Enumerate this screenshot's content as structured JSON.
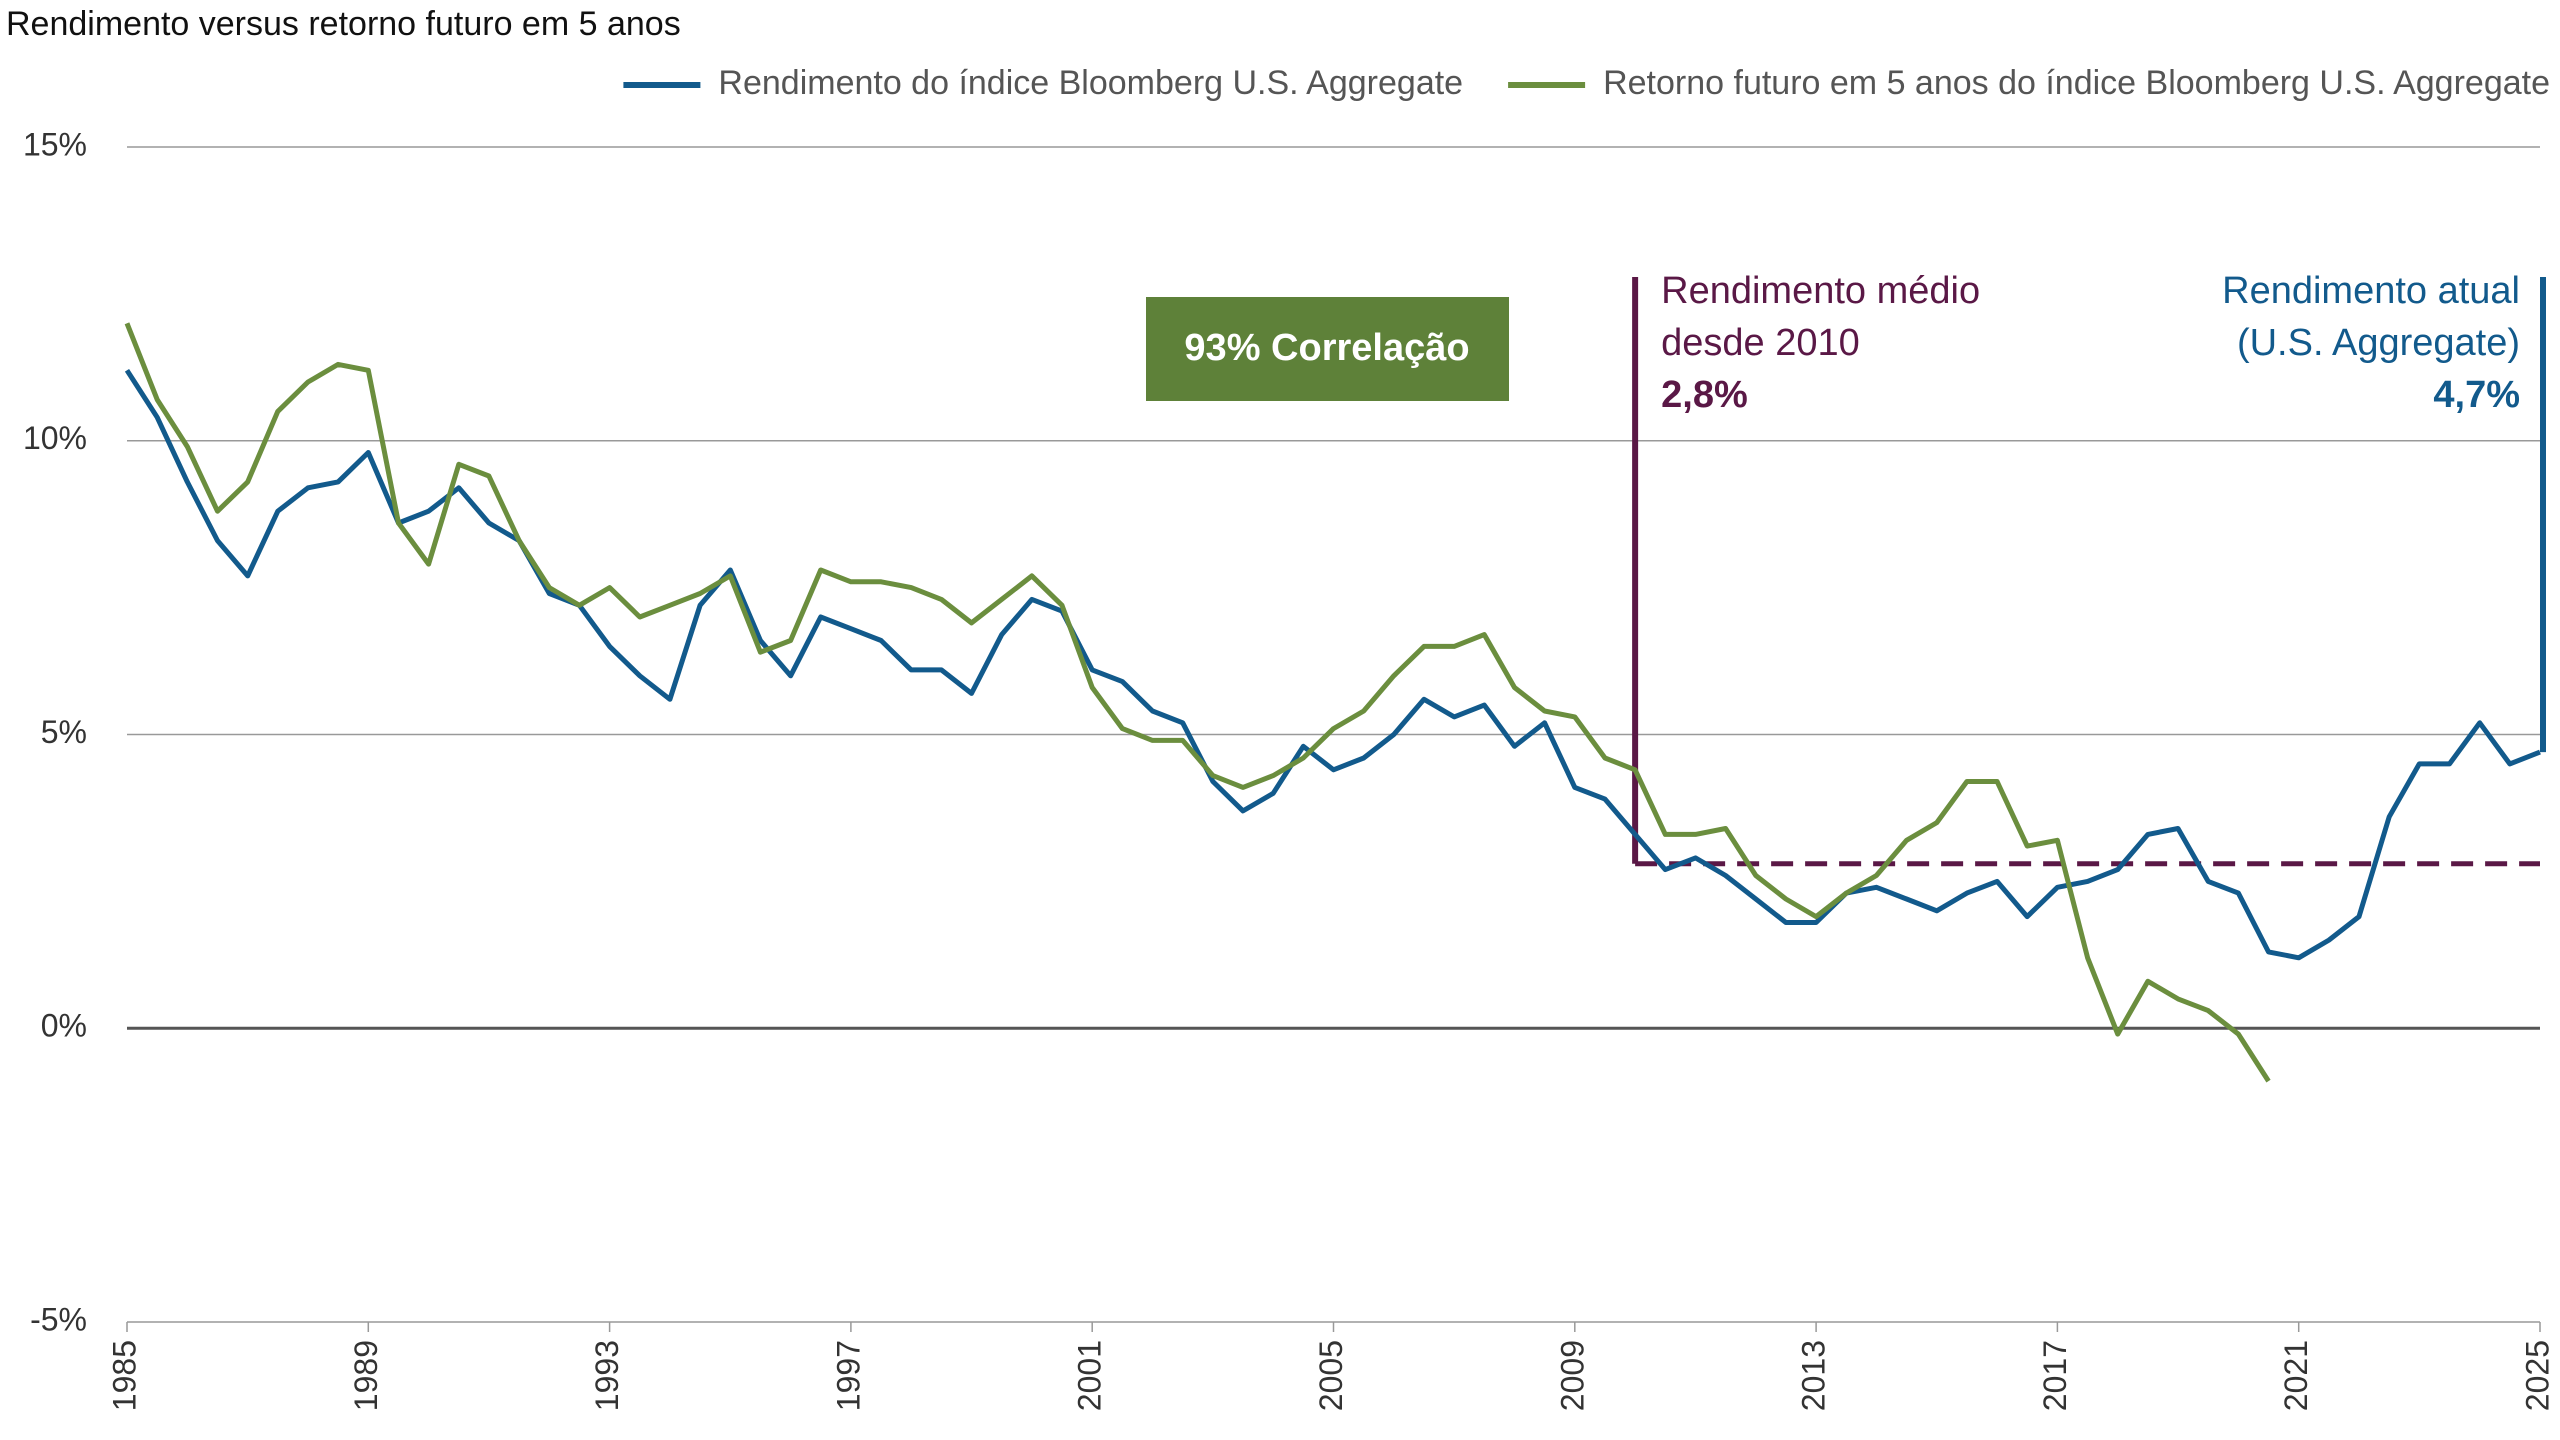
{
  "chart_data": {
    "type": "line",
    "title": "Rendimento versus retorno futuro em 5 anos",
    "x": [
      1985.0,
      1985.5,
      1986.0,
      1986.5,
      1987.0,
      1987.5,
      1988.0,
      1988.5,
      1989.0,
      1989.5,
      1990.0,
      1990.5,
      1991.0,
      1991.5,
      1992.0,
      1992.5,
      1993.0,
      1993.5,
      1994.0,
      1994.5,
      1995.0,
      1995.5,
      1996.0,
      1996.5,
      1997.0,
      1997.5,
      1998.0,
      1998.5,
      1999.0,
      1999.5,
      2000.0,
      2000.5,
      2001.0,
      2001.5,
      2002.0,
      2002.5,
      2003.0,
      2003.5,
      2004.0,
      2004.5,
      2005.0,
      2005.5,
      2006.0,
      2006.5,
      2007.0,
      2007.5,
      2008.0,
      2008.5,
      2009.0,
      2009.5,
      2010.0,
      2010.5,
      2011.0,
      2011.5,
      2012.0,
      2012.5,
      2013.0,
      2013.5,
      2014.0,
      2014.5,
      2015.0,
      2015.5,
      2016.0,
      2016.5,
      2017.0,
      2017.5,
      2018.0,
      2018.5,
      2019.0,
      2019.5,
      2020.0,
      2020.5,
      2021.0,
      2021.5,
      2022.0,
      2022.5,
      2023.0,
      2023.5,
      2024.0,
      2024.5,
      2025.0
    ],
    "series": [
      {
        "name": "Rendimento do índice Bloomberg U.S. Aggregate",
        "color": "#125a8c",
        "values": [
          11.2,
          10.4,
          9.3,
          8.3,
          7.7,
          8.8,
          9.2,
          9.3,
          9.8,
          8.6,
          8.8,
          9.2,
          8.6,
          8.3,
          7.4,
          7.2,
          6.5,
          6.0,
          5.6,
          7.2,
          7.8,
          6.6,
          6.0,
          7.0,
          6.8,
          6.6,
          6.1,
          6.1,
          5.7,
          6.7,
          7.3,
          7.1,
          6.1,
          5.9,
          5.4,
          5.2,
          4.2,
          3.7,
          4.0,
          4.8,
          4.4,
          4.6,
          5.0,
          5.6,
          5.3,
          5.5,
          4.8,
          5.2,
          4.1,
          3.9,
          3.3,
          2.7,
          2.9,
          2.6,
          2.2,
          1.8,
          1.8,
          2.3,
          2.4,
          2.2,
          2.0,
          2.3,
          2.5,
          1.9,
          2.4,
          2.5,
          2.7,
          3.3,
          3.4,
          2.5,
          2.3,
          1.3,
          1.2,
          1.5,
          1.9,
          3.6,
          4.5,
          4.5,
          5.2,
          4.5,
          4.7
        ]
      },
      {
        "name": "Retorno futuro em 5 anos do índice Bloomberg U.S. Aggregate",
        "color": "#6b8e3e",
        "values": [
          12.0,
          10.7,
          9.9,
          8.8,
          9.3,
          10.5,
          11.0,
          11.3,
          11.2,
          8.6,
          7.9,
          9.6,
          9.4,
          8.3,
          7.5,
          7.2,
          7.5,
          7.0,
          7.2,
          7.4,
          7.7,
          6.4,
          6.6,
          7.8,
          7.6,
          7.6,
          7.5,
          7.3,
          6.9,
          7.3,
          7.7,
          7.2,
          5.8,
          5.1,
          4.9,
          4.9,
          4.3,
          4.1,
          4.3,
          4.6,
          5.1,
          5.4,
          6.0,
          6.5,
          6.5,
          6.7,
          5.8,
          5.4,
          5.3,
          4.6,
          4.4,
          3.3,
          3.3,
          3.4,
          2.6,
          2.2,
          1.9,
          2.3,
          2.6,
          3.2,
          3.5,
          4.2,
          4.2,
          3.1,
          3.2,
          1.2,
          -0.1,
          0.8,
          0.5,
          0.3,
          -0.1,
          -0.9,
          null,
          null,
          null,
          null,
          null,
          null,
          null,
          null,
          null
        ]
      }
    ],
    "xlim": [
      1985,
      2025
    ],
    "xticks": [
      1985,
      1989,
      1993,
      1997,
      2001,
      2005,
      2009,
      2013,
      2017,
      2021,
      2025
    ],
    "ylim": [
      -5,
      15
    ],
    "yticks": [
      {
        "value": -5,
        "label": "-5%"
      },
      {
        "value": 0,
        "label": "0%"
      },
      {
        "value": 5,
        "label": "5%"
      },
      {
        "value": 10,
        "label": "10%"
      },
      {
        "value": 15,
        "label": "15%"
      }
    ],
    "grid": true,
    "correlation_label": "93% Correlação",
    "average_line": {
      "value": 2.8,
      "label": "2,8%",
      "start": 2010,
      "text": [
        "Rendimento médio",
        "desde 2010"
      ],
      "color": "#5a1846"
    },
    "current_line": {
      "value": 4.7,
      "label": "4,7%",
      "x": 2025,
      "text": [
        "Rendimento atual",
        "(U.S. Aggregate)"
      ],
      "color": "#125a8c"
    }
  }
}
